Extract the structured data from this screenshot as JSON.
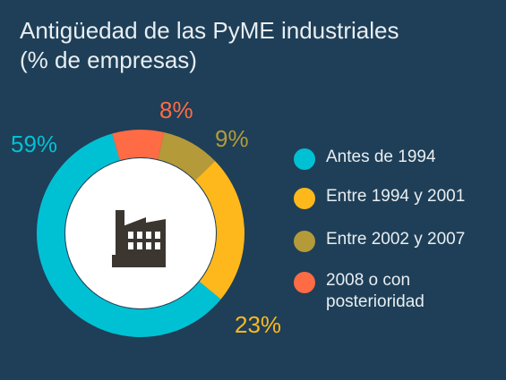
{
  "title_lines": [
    "Antigüedad de las PyME industriales",
    "(% de empresas)"
  ],
  "colors": {
    "background": "#1e3f57",
    "text": "#e9eef2",
    "center": "#ffffff",
    "icon": "#3b3630"
  },
  "icon": "factory-icon",
  "chart_data": {
    "type": "pie",
    "donut": true,
    "title": "Antigüedad de las PyME industriales",
    "subtitle": "(% de empresas)",
    "legend_position": "right",
    "slices": [
      {
        "label": "Antes de 1994",
        "value": 59,
        "display": "59%",
        "color": "#00c1d4"
      },
      {
        "label": "Entre 1994 y 2001",
        "value": 23,
        "display": "23%",
        "color": "#ffb81c"
      },
      {
        "label": "Entre 2002 y 2007",
        "value": 9,
        "display": "9%",
        "color": "#b59a3a"
      },
      {
        "label": "2008 o con posterioridad",
        "value": 8,
        "display": "8%",
        "color": "#ff6b45"
      }
    ]
  }
}
